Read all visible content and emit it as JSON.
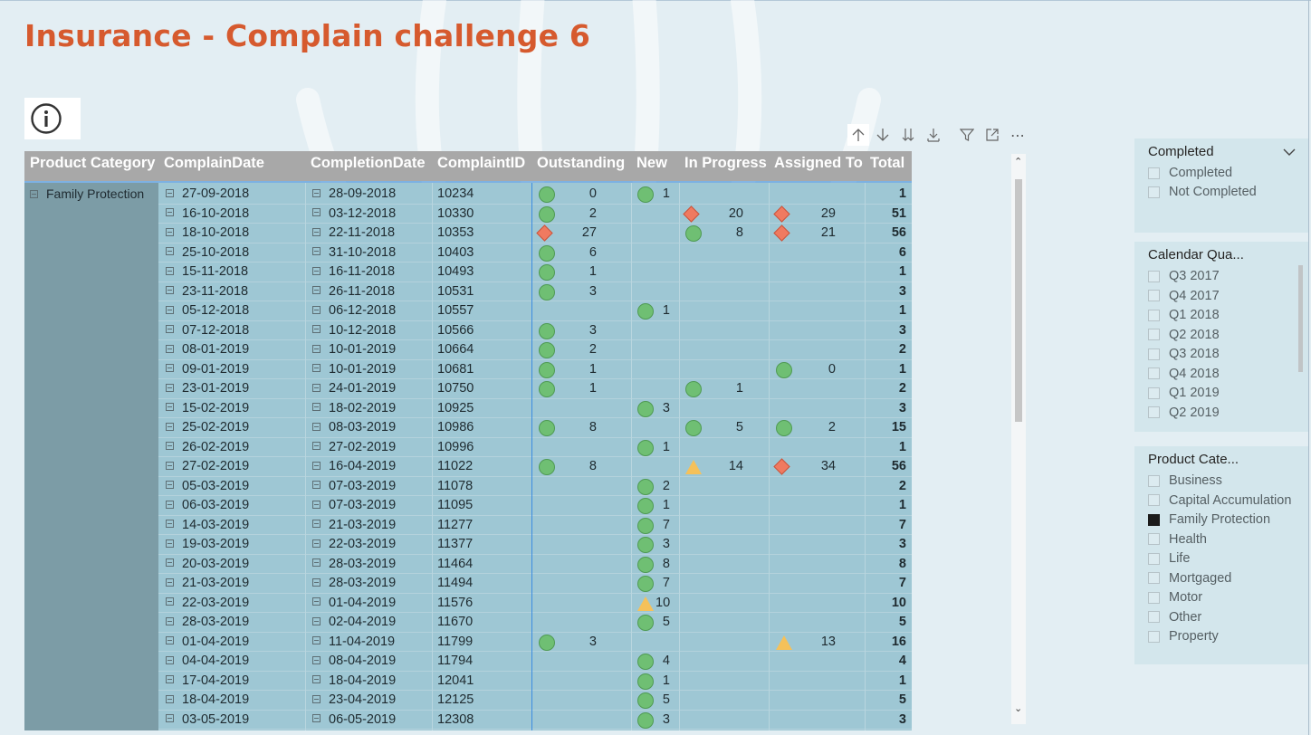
{
  "title": "Insurance - Complain challenge 6",
  "info_icon": "info-circle-icon",
  "toolbar": {
    "icons": [
      "arrow-up-icon",
      "arrow-down-icon",
      "double-arrow-down-icon",
      "expand-hierarchy-icon",
      "filter-icon",
      "focus-mode-icon",
      "more-options-icon"
    ],
    "more_label": "⋯"
  },
  "colors": {
    "title": "#d65a2e",
    "green_indicator": "#6fbf73",
    "red_indicator": "#f07a60",
    "amber_indicator": "#f5c15a",
    "header_bg": "#a8a8a8",
    "row_bg": "#9ec7d4"
  },
  "table": {
    "headers": [
      "Product Category",
      "ComplainDate",
      "CompletionDate",
      "ComplaintID",
      "Outstanding",
      "New",
      "In Progress",
      "Assigned To",
      "Total"
    ],
    "category": "Family Protection",
    "rows": [
      {
        "complain": "27-09-2018",
        "completion": "28-09-2018",
        "id": "10234",
        "out": {
          "icon": "green",
          "value": "0"
        },
        "new": {
          "icon": "green",
          "value": "1"
        },
        "prog": null,
        "assigned": null,
        "total": "1"
      },
      {
        "complain": "16-10-2018",
        "completion": "03-12-2018",
        "id": "10330",
        "out": {
          "icon": "green",
          "value": "2"
        },
        "new": null,
        "prog": {
          "icon": "red",
          "value": "20"
        },
        "assigned": {
          "icon": "red",
          "value": "29"
        },
        "total": "51"
      },
      {
        "complain": "18-10-2018",
        "completion": "22-11-2018",
        "id": "10353",
        "out": {
          "icon": "red",
          "value": "27"
        },
        "new": null,
        "prog": {
          "icon": "green",
          "value": "8"
        },
        "assigned": {
          "icon": "red",
          "value": "21"
        },
        "total": "56"
      },
      {
        "complain": "25-10-2018",
        "completion": "31-10-2018",
        "id": "10403",
        "out": {
          "icon": "green",
          "value": "6"
        },
        "new": null,
        "prog": null,
        "assigned": null,
        "total": "6"
      },
      {
        "complain": "15-11-2018",
        "completion": "16-11-2018",
        "id": "10493",
        "out": {
          "icon": "green",
          "value": "1"
        },
        "new": null,
        "prog": null,
        "assigned": null,
        "total": "1"
      },
      {
        "complain": "23-11-2018",
        "completion": "26-11-2018",
        "id": "10531",
        "out": {
          "icon": "green",
          "value": "3"
        },
        "new": null,
        "prog": null,
        "assigned": null,
        "total": "3"
      },
      {
        "complain": "05-12-2018",
        "completion": "06-12-2018",
        "id": "10557",
        "out": null,
        "new": {
          "icon": "green",
          "value": "1"
        },
        "prog": null,
        "assigned": null,
        "total": "1"
      },
      {
        "complain": "07-12-2018",
        "completion": "10-12-2018",
        "id": "10566",
        "out": {
          "icon": "green",
          "value": "3"
        },
        "new": null,
        "prog": null,
        "assigned": null,
        "total": "3"
      },
      {
        "complain": "08-01-2019",
        "completion": "10-01-2019",
        "id": "10664",
        "out": {
          "icon": "green",
          "value": "2"
        },
        "new": null,
        "prog": null,
        "assigned": null,
        "total": "2"
      },
      {
        "complain": "09-01-2019",
        "completion": "10-01-2019",
        "id": "10681",
        "out": {
          "icon": "green",
          "value": "1"
        },
        "new": null,
        "prog": null,
        "assigned": {
          "icon": "green",
          "value": "0"
        },
        "total": "1"
      },
      {
        "complain": "23-01-2019",
        "completion": "24-01-2019",
        "id": "10750",
        "out": {
          "icon": "green",
          "value": "1"
        },
        "new": null,
        "prog": {
          "icon": "green",
          "value": "1"
        },
        "assigned": null,
        "total": "2"
      },
      {
        "complain": "15-02-2019",
        "completion": "18-02-2019",
        "id": "10925",
        "out": null,
        "new": {
          "icon": "green",
          "value": "3"
        },
        "prog": null,
        "assigned": null,
        "total": "3"
      },
      {
        "complain": "25-02-2019",
        "completion": "08-03-2019",
        "id": "10986",
        "out": {
          "icon": "green",
          "value": "8"
        },
        "new": null,
        "prog": {
          "icon": "green",
          "value": "5"
        },
        "assigned": {
          "icon": "green",
          "value": "2"
        },
        "total": "15"
      },
      {
        "complain": "26-02-2019",
        "completion": "27-02-2019",
        "id": "10996",
        "out": null,
        "new": {
          "icon": "green",
          "value": "1"
        },
        "prog": null,
        "assigned": null,
        "total": "1"
      },
      {
        "complain": "27-02-2019",
        "completion": "16-04-2019",
        "id": "11022",
        "out": {
          "icon": "green",
          "value": "8"
        },
        "new": null,
        "prog": {
          "icon": "amber",
          "value": "14"
        },
        "assigned": {
          "icon": "red",
          "value": "34"
        },
        "total": "56"
      },
      {
        "complain": "05-03-2019",
        "completion": "07-03-2019",
        "id": "11078",
        "out": null,
        "new": {
          "icon": "green",
          "value": "2"
        },
        "prog": null,
        "assigned": null,
        "total": "2"
      },
      {
        "complain": "06-03-2019",
        "completion": "07-03-2019",
        "id": "11095",
        "out": null,
        "new": {
          "icon": "green",
          "value": "1"
        },
        "prog": null,
        "assigned": null,
        "total": "1"
      },
      {
        "complain": "14-03-2019",
        "completion": "21-03-2019",
        "id": "11277",
        "out": null,
        "new": {
          "icon": "green",
          "value": "7"
        },
        "prog": null,
        "assigned": null,
        "total": "7"
      },
      {
        "complain": "19-03-2019",
        "completion": "22-03-2019",
        "id": "11377",
        "out": null,
        "new": {
          "icon": "green",
          "value": "3"
        },
        "prog": null,
        "assigned": null,
        "total": "3"
      },
      {
        "complain": "20-03-2019",
        "completion": "28-03-2019",
        "id": "11464",
        "out": null,
        "new": {
          "icon": "green",
          "value": "8"
        },
        "prog": null,
        "assigned": null,
        "total": "8"
      },
      {
        "complain": "21-03-2019",
        "completion": "28-03-2019",
        "id": "11494",
        "out": null,
        "new": {
          "icon": "green",
          "value": "7"
        },
        "prog": null,
        "assigned": null,
        "total": "7"
      },
      {
        "complain": "22-03-2019",
        "completion": "01-04-2019",
        "id": "11576",
        "out": null,
        "new": {
          "icon": "amber",
          "value": "10"
        },
        "prog": null,
        "assigned": null,
        "total": "10"
      },
      {
        "complain": "28-03-2019",
        "completion": "02-04-2019",
        "id": "11670",
        "out": null,
        "new": {
          "icon": "green",
          "value": "5"
        },
        "prog": null,
        "assigned": null,
        "total": "5"
      },
      {
        "complain": "01-04-2019",
        "completion": "11-04-2019",
        "id": "11799",
        "out": {
          "icon": "green",
          "value": "3"
        },
        "new": null,
        "prog": null,
        "assigned": {
          "icon": "amber",
          "value": "13"
        },
        "total": "16"
      },
      {
        "complain": "04-04-2019",
        "completion": "08-04-2019",
        "id": "11794",
        "out": null,
        "new": {
          "icon": "green",
          "value": "4"
        },
        "prog": null,
        "assigned": null,
        "total": "4"
      },
      {
        "complain": "17-04-2019",
        "completion": "18-04-2019",
        "id": "12041",
        "out": null,
        "new": {
          "icon": "green",
          "value": "1"
        },
        "prog": null,
        "assigned": null,
        "total": "1"
      },
      {
        "complain": "18-04-2019",
        "completion": "23-04-2019",
        "id": "12125",
        "out": null,
        "new": {
          "icon": "green",
          "value": "5"
        },
        "prog": null,
        "assigned": null,
        "total": "5"
      },
      {
        "complain": "03-05-2019",
        "completion": "06-05-2019",
        "id": "12308",
        "out": null,
        "new": {
          "icon": "green",
          "value": "3"
        },
        "prog": null,
        "assigned": null,
        "total": "3"
      }
    ]
  },
  "slicers": {
    "completed": {
      "title": "Completed",
      "chevron_icon": "chevron-down-icon",
      "items": [
        {
          "label": "Completed",
          "checked": false
        },
        {
          "label": "Not Completed",
          "checked": false
        }
      ]
    },
    "quarter": {
      "title": "Calendar Qua...",
      "items": [
        {
          "label": "Q3 2017",
          "checked": false
        },
        {
          "label": "Q4 2017",
          "checked": false
        },
        {
          "label": "Q1 2018",
          "checked": false
        },
        {
          "label": "Q2 2018",
          "checked": false
        },
        {
          "label": "Q3 2018",
          "checked": false
        },
        {
          "label": "Q4 2018",
          "checked": false
        },
        {
          "label": "Q1 2019",
          "checked": false
        },
        {
          "label": "Q2 2019",
          "checked": false
        }
      ]
    },
    "product": {
      "title": "Product Cate...",
      "items": [
        {
          "label": "Business",
          "checked": false
        },
        {
          "label": "Capital Accumulation",
          "checked": false
        },
        {
          "label": "Family Protection",
          "checked": true
        },
        {
          "label": "Health",
          "checked": false
        },
        {
          "label": "Life",
          "checked": false
        },
        {
          "label": "Mortgaged",
          "checked": false
        },
        {
          "label": "Motor",
          "checked": false
        },
        {
          "label": "Other",
          "checked": false
        },
        {
          "label": "Property",
          "checked": false
        }
      ]
    }
  }
}
